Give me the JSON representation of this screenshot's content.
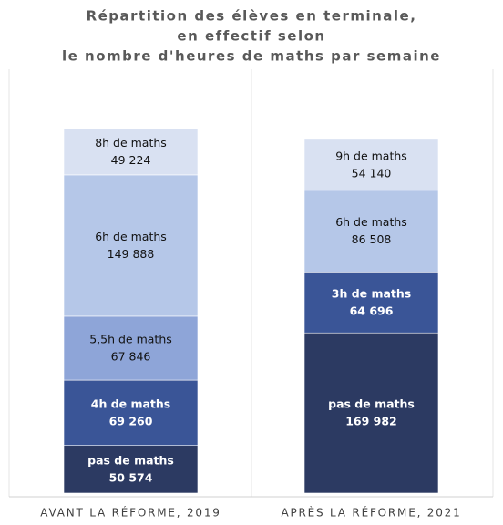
{
  "chart_data": {
    "type": "stacked-bar",
    "title": [
      "Répartition des élèves en terminale,",
      "en effectif selon",
      "le nombre d'heures de maths par semaine"
    ],
    "bars": [
      {
        "category": "AVANT LA RÉFORME, 2019",
        "segments": [
          {
            "name": "pas de maths",
            "value": 50574,
            "value_label": "50 574",
            "color": "#2c3a62"
          },
          {
            "name": "4h de maths",
            "value": 69260,
            "value_label": "69 260",
            "color": "#3a5597"
          },
          {
            "name": "5,5h de maths",
            "value": 67846,
            "value_label": "67 846",
            "color": "#8ea5d8"
          },
          {
            "name": "6h de maths",
            "value": 149888,
            "value_label": "149 888",
            "color": "#b5c7e8"
          },
          {
            "name": "8h de maths",
            "value": 49224,
            "value_label": "49 224",
            "color": "#d9e1f2"
          }
        ]
      },
      {
        "category": "APRÈS LA RÉFORME, 2021",
        "segments": [
          {
            "name": "pas de maths",
            "value": 169982,
            "value_label": "169 982",
            "color": "#2c3a62"
          },
          {
            "name": "3h de maths",
            "value": 64696,
            "value_label": "64 696",
            "color": "#3a5597"
          },
          {
            "name": "6h de maths",
            "value": 86508,
            "value_label": "86 508",
            "color": "#b5c7e8"
          },
          {
            "name": "9h de maths",
            "value": 54140,
            "value_label": "54 140",
            "color": "#d9e1f2"
          }
        ]
      }
    ]
  }
}
